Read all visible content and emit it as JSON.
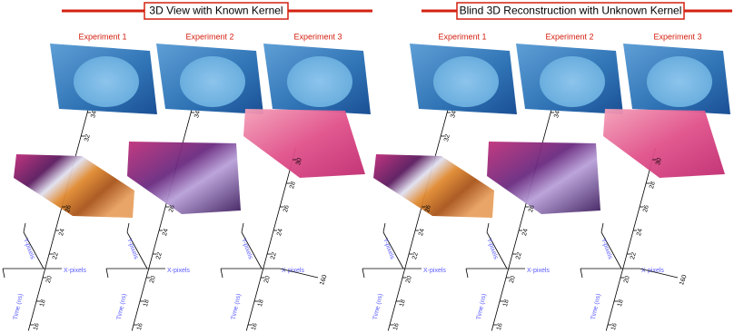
{
  "panels": [
    {
      "title": "3D View with Known Kernel",
      "experiments": [
        {
          "label": "Experiment 1",
          "x_axis": "X-pixels",
          "y_axis": "Y-pixels",
          "time_axis": "Time (ns)",
          "ticks": [
            16,
            18,
            20,
            22,
            24,
            26,
            32,
            34
          ]
        },
        {
          "label": "Experiment 2",
          "x_axis": "X-pixels",
          "y_axis": "Y-pixels",
          "time_axis": "Time (ns)",
          "ticks": [
            16,
            18,
            20,
            22,
            24,
            26,
            34
          ]
        },
        {
          "label": "Experiment 3",
          "x_axis": "X-pixels",
          "y_axis": "Y-pixels",
          "time_axis": "Time (ns)",
          "ticks": [
            16,
            18,
            20,
            22,
            24,
            26,
            28,
            30
          ],
          "x_end": 160
        }
      ]
    },
    {
      "title": "Blind 3D Reconstruction with Unknown Kernel",
      "experiments": [
        {
          "label": "Experiment 1",
          "x_axis": "X-pixels",
          "y_axis": "Y-pixels",
          "time_axis": "Time (ns)",
          "ticks": [
            16,
            18,
            20,
            22,
            24,
            26,
            32,
            34
          ]
        },
        {
          "label": "Experiment 2",
          "x_axis": "X-pixels",
          "y_axis": "Y-pixels",
          "time_axis": "Time (ns)",
          "ticks": [
            16,
            18,
            20,
            22,
            24,
            26,
            34
          ]
        },
        {
          "label": "Experiment 3",
          "x_axis": "X-pixels",
          "y_axis": "Y-pixels",
          "time_axis": "Time (ns)",
          "ticks": [
            16,
            18,
            20,
            22,
            24,
            26,
            28,
            30
          ],
          "x_end": 160
        }
      ]
    }
  ]
}
